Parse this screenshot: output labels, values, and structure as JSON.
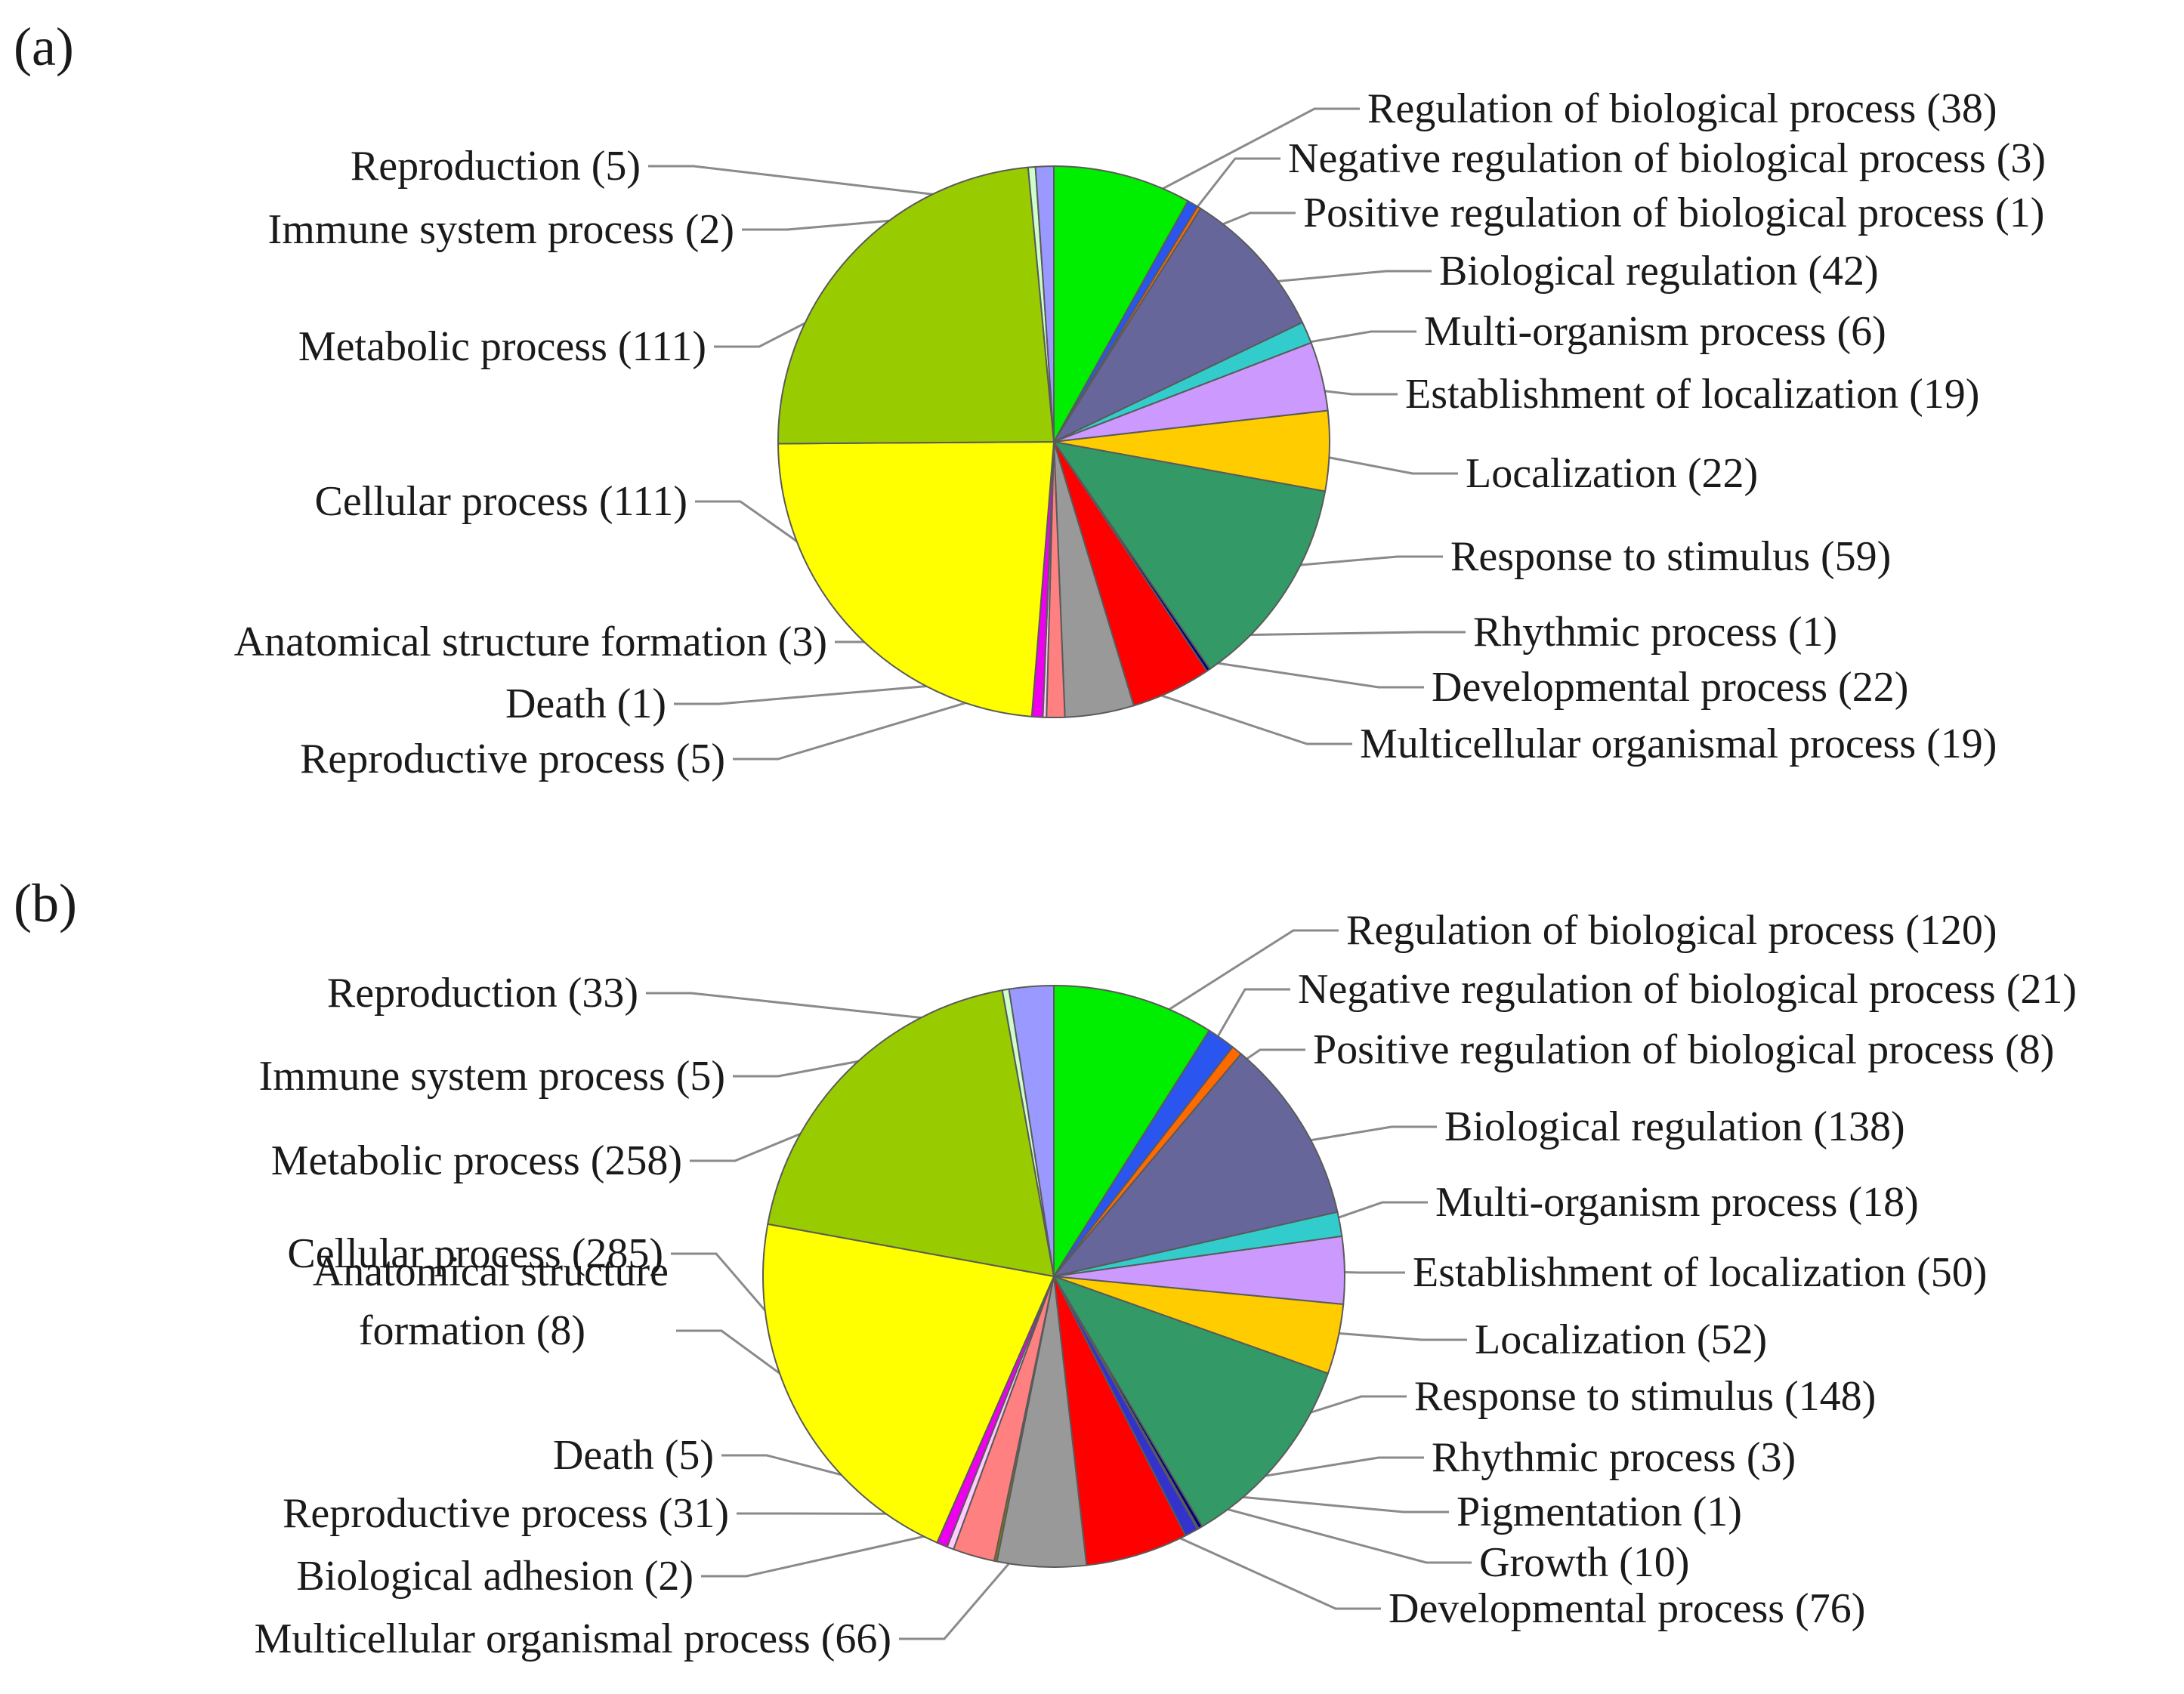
{
  "chart_data": [
    {
      "type": "pie",
      "panel_label": "(a)",
      "title": "",
      "slices": [
        {
          "label": "Regulation of biological process (38)",
          "value": 38,
          "color": "#00ee00"
        },
        {
          "label": "Negative regulation of biological process (3)",
          "value": 3,
          "color": "#2a55ee"
        },
        {
          "label": "Positive regulation of biological process (1)",
          "value": 1,
          "color": "#ff6a00"
        },
        {
          "label": "Biological regulation (42)",
          "value": 42,
          "color": "#66669a"
        },
        {
          "label": "Multi-organism process (6)",
          "value": 6,
          "color": "#33cccc"
        },
        {
          "label": "Establishment of localization (19)",
          "value": 19,
          "color": "#cc99ff"
        },
        {
          "label": "Localization (22)",
          "value": 22,
          "color": "#ffcc00"
        },
        {
          "label": "Response to stimulus (59)",
          "value": 59,
          "color": "#339966"
        },
        {
          "label": "Rhythmic process (1)",
          "value": 1,
          "color": "#000080"
        },
        {
          "label": "Developmental process (22)",
          "value": 22,
          "color": "#ff0000"
        },
        {
          "label": "Multicellular organismal process (19)",
          "value": 19,
          "color": "#999999"
        },
        {
          "label": "Reproductive process (5)",
          "value": 5,
          "color": "#ff8080"
        },
        {
          "label": "Death (1)",
          "value": 1,
          "color": "#ffccff"
        },
        {
          "label": "Anatomical structure formation (3)",
          "value": 3,
          "color": "#ee00ee"
        },
        {
          "label": "Cellular process (111)",
          "value": 111,
          "color": "#ffff00"
        },
        {
          "label": "Metabolic process (111)",
          "value": 111,
          "color": "#99cc00"
        },
        {
          "label": "Immune system process (2)",
          "value": 2,
          "color": "#ccffcc"
        },
        {
          "label": "Reproduction (5)",
          "value": 5,
          "color": "#9999ff"
        }
      ]
    },
    {
      "type": "pie",
      "panel_label": "(b)",
      "title": "",
      "slices": [
        {
          "label": "Regulation of biological process (120)",
          "value": 120,
          "color": "#00ee00"
        },
        {
          "label": "Negative regulation of biological process (21)",
          "value": 21,
          "color": "#2a55ee"
        },
        {
          "label": "Positive regulation of biological process (8)",
          "value": 8,
          "color": "#ff6a00"
        },
        {
          "label": "Biological regulation (138)",
          "value": 138,
          "color": "#66669a"
        },
        {
          "label": "Multi-organism process (18)",
          "value": 18,
          "color": "#33cccc"
        },
        {
          "label": "Establishment of localization (50)",
          "value": 50,
          "color": "#cc99ff"
        },
        {
          "label": "Localization (52)",
          "value": 52,
          "color": "#ffcc00"
        },
        {
          "label": "Response to stimulus (148)",
          "value": 148,
          "color": "#339966"
        },
        {
          "label": "Rhythmic process (3)",
          "value": 3,
          "color": "#000080"
        },
        {
          "label": "Pigmentation (1)",
          "value": 1,
          "color": "#800080"
        },
        {
          "label": "Growth (10)",
          "value": 10,
          "color": "#3333cc"
        },
        {
          "label": "Developmental process (76)",
          "value": 76,
          "color": "#ff0000"
        },
        {
          "label": "Multicellular organismal process (66)",
          "value": 66,
          "color": "#999999"
        },
        {
          "label": "Biological adhesion (2)",
          "value": 2,
          "color": "#808000"
        },
        {
          "label": "Reproductive process (31)",
          "value": 31,
          "color": "#ff8080"
        },
        {
          "label": "Death (5)",
          "value": 5,
          "color": "#ffccff"
        },
        {
          "label": "Anatomical structure formation (8)",
          "value": 8,
          "color": "#ee00ee"
        },
        {
          "label": "Cellular process (285)",
          "value": 285,
          "color": "#ffff00"
        },
        {
          "label": "Metabolic process (258)",
          "value": 258,
          "color": "#99cc00"
        },
        {
          "label": "Immune system process (5)",
          "value": 5,
          "color": "#ccffcc"
        },
        {
          "label": "Reproduction (33)",
          "value": 33,
          "color": "#9999ff"
        }
      ]
    }
  ]
}
